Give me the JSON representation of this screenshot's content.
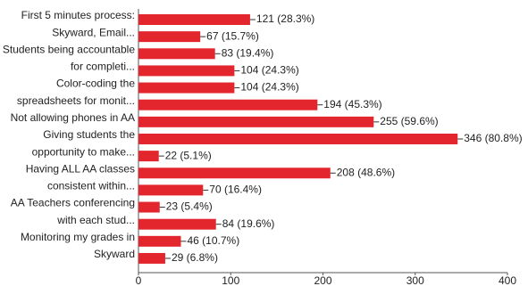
{
  "chart_data": {
    "type": "bar",
    "orientation": "horizontal",
    "color": "#e3262e",
    "categories": [
      "First 5 minutes process:",
      "Skyward, Email...",
      "Students being accountable",
      "for completi...",
      "Color-coding the",
      "spreadsheets for monit...",
      "Not allowing phones in AA",
      "Giving students the",
      "opportunity to make...",
      "Having ALL AA classes",
      "consistent within...",
      "AA Teachers conferencing",
      "with each stud...",
      "Monitoring my grades in",
      "Skyward"
    ],
    "values": [
      121,
      67,
      83,
      104,
      104,
      194,
      255,
      346,
      22,
      208,
      70,
      23,
      84,
      46,
      29
    ],
    "value_labels": [
      "121 (28.3%)",
      "67 (15.7%)",
      "83 (19.4%)",
      "104 (24.3%)",
      "104 (24.3%)",
      "194 (45.3%)",
      "255 (59.6%)",
      "346 (80.8%)",
      "22 (5.1%)",
      "208 (48.6%)",
      "70 (16.4%)",
      "23 (5.4%)",
      "84 (19.6%)",
      "46 (10.7%)",
      "29 (6.8%)"
    ],
    "xlim": [
      0,
      400
    ],
    "xticks": [
      0,
      100,
      200,
      300,
      400
    ]
  }
}
